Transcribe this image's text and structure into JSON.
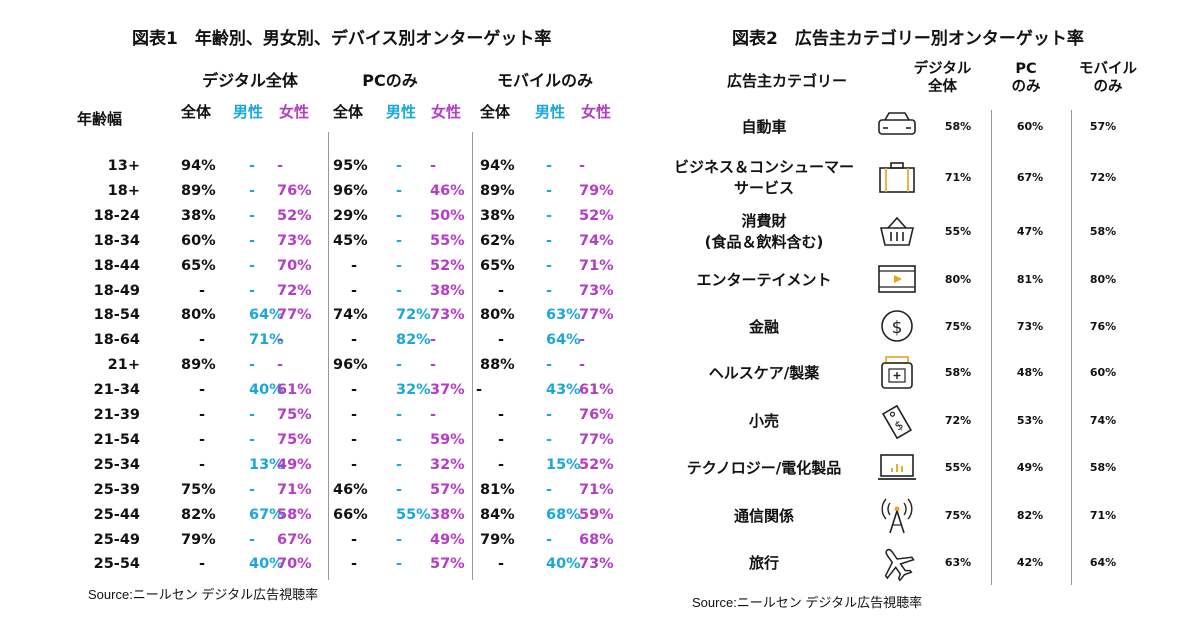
{
  "colors": {
    "total": "#111111",
    "male": "#1aa7dc",
    "female": "#b53cc6",
    "icon": "#222222",
    "icon_accent": "#e8a320",
    "divider": "#999999"
  },
  "chart1": {
    "title": "図表1　年齢別、男女別、デバイス別オンターゲット率",
    "row_header": "年齢幅",
    "groups": [
      "デジタル全体",
      "PCのみ",
      "モバイルのみ"
    ],
    "subheaders": [
      "全体",
      "男性",
      "女性"
    ],
    "source": "Source:ニールセン デジタル広告視聴率"
  },
  "chart2": {
    "title": "図表2　広告主カテゴリー別オンターゲット率",
    "category_header": "広告主カテゴリー",
    "col_headers": [
      "デジタル\n全体",
      "PC\nのみ",
      "モバイル\nのみ"
    ],
    "source": "Source:ニールセン デジタル広告視聴率"
  },
  "chart_data": [
    {
      "type": "table",
      "title": "図表1　年齢別、男女別、デバイス別オンターゲット率",
      "columns": [
        "年齢幅",
        "デジタル全体 全体",
        "デジタル全体 男性",
        "デジタル全体 女性",
        "PCのみ 全体",
        "PCのみ 男性",
        "PCのみ 女性",
        "モバイルのみ 全体",
        "モバイルのみ 男性",
        "モバイルのみ 女性"
      ],
      "rows": [
        [
          "13+",
          "94%",
          "-",
          "-",
          "95%",
          "-",
          "-",
          "94%",
          "-",
          "-"
        ],
        [
          "18+",
          "89%",
          "-",
          "76%",
          "96%",
          "-",
          "46%",
          "89%",
          "-",
          "79%"
        ],
        [
          "18-24",
          "38%",
          "-",
          "52%",
          "29%",
          "-",
          "50%",
          "38%",
          "-",
          "52%"
        ],
        [
          "18-34",
          "60%",
          "-",
          "73%",
          "45%",
          "-",
          "55%",
          "62%",
          "-",
          "74%"
        ],
        [
          "18-44",
          "65%",
          "-",
          "70%",
          "-",
          "-",
          "52%",
          "65%",
          "-",
          "71%"
        ],
        [
          "18-49",
          "-",
          "-",
          "72%",
          "-",
          "-",
          "38%",
          "-",
          "-",
          "73%"
        ],
        [
          "18-54",
          "80%",
          "64%",
          "77%",
          "74%",
          "72%",
          "73%",
          "80%",
          "63%",
          "77%"
        ],
        [
          "18-64",
          "-",
          "71%",
          "-",
          "-",
          "82%",
          "-",
          "-",
          "64%",
          "-"
        ],
        [
          "21+",
          "89%",
          "-",
          "-",
          "96%",
          "-",
          "-",
          "88%",
          "-",
          "-"
        ],
        [
          "21-34",
          "-",
          "40%",
          "61%",
          "-",
          "32%",
          "37%",
          "-",
          "43%",
          "61%"
        ],
        [
          "21-39",
          "-",
          "-",
          "75%",
          "-",
          "-",
          "-",
          "-",
          "-",
          "76%"
        ],
        [
          "21-54",
          "-",
          "-",
          "75%",
          "-",
          "-",
          "59%",
          "-",
          "-",
          "77%"
        ],
        [
          "25-34",
          "-",
          "13%",
          "49%",
          "-",
          "-",
          "32%",
          "-",
          "15%",
          "52%"
        ],
        [
          "25-39",
          "75%",
          "-",
          "71%",
          "46%",
          "-",
          "57%",
          "81%",
          "-",
          "71%"
        ],
        [
          "25-44",
          "82%",
          "67%",
          "58%",
          "66%",
          "55%",
          "38%",
          "84%",
          "68%",
          "59%"
        ],
        [
          "25-49",
          "79%",
          "-",
          "67%",
          "-",
          "-",
          "49%",
          "79%",
          "-",
          "68%"
        ],
        [
          "25-54",
          "-",
          "40%",
          "70%",
          "-",
          "-",
          "57%",
          "-",
          "40%",
          "73%"
        ]
      ]
    },
    {
      "type": "table",
      "title": "図表2　広告主カテゴリー別オンターゲット率",
      "columns": [
        "広告主カテゴリー",
        "デジタル全体",
        "PCのみ",
        "モバイルのみ"
      ],
      "rows": [
        {
          "category": "自動車",
          "icon": "car-icon",
          "values": [
            "58%",
            "60%",
            "57%"
          ]
        },
        {
          "category": "ビジネス＆コンシューマー\nサービス",
          "icon": "briefcase-icon",
          "values": [
            "71%",
            "67%",
            "72%"
          ]
        },
        {
          "category": "消費財\n(食品＆飲料含む)",
          "icon": "basket-icon",
          "values": [
            "55%",
            "47%",
            "58%"
          ]
        },
        {
          "category": "エンターテイメント",
          "icon": "film-icon",
          "values": [
            "80%",
            "81%",
            "80%"
          ]
        },
        {
          "category": "金融",
          "icon": "dollar-coin-icon",
          "values": [
            "75%",
            "73%",
            "76%"
          ]
        },
        {
          "category": "ヘルスケア/製薬",
          "icon": "medicine-jar-icon",
          "values": [
            "58%",
            "48%",
            "60%"
          ]
        },
        {
          "category": "小売",
          "icon": "price-tag-icon",
          "values": [
            "72%",
            "53%",
            "74%"
          ]
        },
        {
          "category": "テクノロジー/電化製品",
          "icon": "laptop-chart-icon",
          "values": [
            "55%",
            "49%",
            "58%"
          ]
        },
        {
          "category": "通信関係",
          "icon": "antenna-icon",
          "values": [
            "75%",
            "82%",
            "71%"
          ]
        },
        {
          "category": "旅行",
          "icon": "airplane-icon",
          "values": [
            "63%",
            "42%",
            "64%"
          ]
        }
      ]
    }
  ]
}
